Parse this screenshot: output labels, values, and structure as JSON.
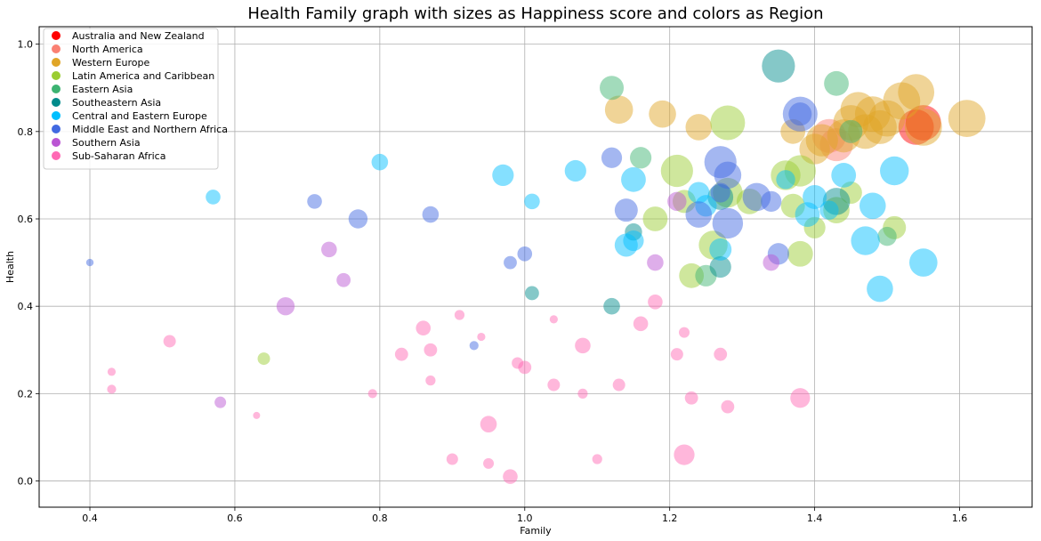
{
  "chart_data": {
    "type": "scatter",
    "title": "Health Family graph with sizes as Happiness score and colors as Region",
    "xlabel": "Family",
    "ylabel": "Health",
    "xlim": [
      0.33,
      1.7
    ],
    "ylim": [
      -0.06,
      1.04
    ],
    "xticks": [
      0.4,
      0.6,
      0.8,
      1.0,
      1.2,
      1.4,
      1.6
    ],
    "yticks": [
      0.0,
      0.2,
      0.4,
      0.6,
      0.8,
      1.0
    ],
    "grid": true,
    "legend_placement": "top-left",
    "size_encoding": "Happiness score",
    "color_encoding": "Region",
    "series": [
      {
        "name": "Australia and New Zealand",
        "color": "#ff0000",
        "points": [
          [
            1.55,
            0.82,
            7.3
          ],
          [
            1.54,
            0.81,
            7.3
          ]
        ]
      },
      {
        "name": "North America",
        "color": "#fa8072",
        "points": [
          [
            1.42,
            0.79,
            7.1
          ],
          [
            1.43,
            0.77,
            7.0
          ]
        ]
      },
      {
        "name": "Western Europe",
        "color": "#e0a526",
        "points": [
          [
            1.61,
            0.83,
            7.5
          ],
          [
            1.55,
            0.81,
            7.5
          ],
          [
            1.52,
            0.87,
            7.5
          ],
          [
            1.54,
            0.89,
            7.4
          ],
          [
            1.5,
            0.83,
            7.4
          ],
          [
            1.48,
            0.84,
            7.3
          ],
          [
            1.46,
            0.85,
            7.3
          ],
          [
            1.45,
            0.82,
            7.3
          ],
          [
            1.47,
            0.8,
            7.2
          ],
          [
            1.49,
            0.81,
            7.1
          ],
          [
            1.44,
            0.79,
            7.0
          ],
          [
            1.41,
            0.78,
            6.9
          ],
          [
            1.4,
            0.76,
            6.7
          ],
          [
            1.24,
            0.81,
            6.2
          ],
          [
            1.19,
            0.84,
            6.3
          ],
          [
            1.13,
            0.85,
            6.4
          ],
          [
            1.37,
            0.8,
            6.0
          ]
        ]
      },
      {
        "name": "Latin America and Caribbean",
        "color": "#9acd32",
        "points": [
          [
            1.28,
            0.82,
            7.2
          ],
          [
            1.21,
            0.71,
            6.9
          ],
          [
            1.38,
            0.71,
            6.8
          ],
          [
            1.36,
            0.7,
            6.6
          ],
          [
            1.26,
            0.54,
            6.5
          ],
          [
            1.28,
            0.66,
            6.6
          ],
          [
            1.43,
            0.62,
            6.2
          ],
          [
            1.31,
            0.64,
            6.1
          ],
          [
            1.23,
            0.47,
            6.0
          ],
          [
            1.18,
            0.6,
            6.0
          ],
          [
            1.38,
            0.52,
            6.1
          ],
          [
            1.51,
            0.58,
            5.8
          ],
          [
            1.37,
            0.63,
            5.9
          ],
          [
            1.22,
            0.64,
            5.8
          ],
          [
            1.4,
            0.58,
            5.6
          ],
          [
            1.45,
            0.66,
            5.7
          ],
          [
            0.64,
            0.28,
            4.5
          ]
        ]
      },
      {
        "name": "Eastern Asia",
        "color": "#3cb371",
        "points": [
          [
            1.43,
            0.91,
            6.0
          ],
          [
            1.12,
            0.9,
            5.9
          ],
          [
            1.16,
            0.74,
            5.6
          ],
          [
            1.45,
            0.8,
            5.8
          ],
          [
            1.25,
            0.47,
            5.6
          ],
          [
            1.5,
            0.56,
            5.3
          ]
        ]
      },
      {
        "name": "Southeastern Asia",
        "color": "#008b8b",
        "points": [
          [
            1.35,
            0.95,
            7.0
          ],
          [
            1.43,
            0.64,
            6.3
          ],
          [
            1.27,
            0.65,
            6.1
          ],
          [
            1.27,
            0.49,
            5.6
          ],
          [
            1.12,
            0.4,
            5.0
          ],
          [
            1.01,
            0.43,
            4.7
          ],
          [
            1.15,
            0.57,
            5.1
          ]
        ]
      },
      {
        "name": "Central and Eastern Europe",
        "color": "#00bfff",
        "points": [
          [
            1.47,
            0.55,
            6.5
          ],
          [
            1.51,
            0.71,
            6.5
          ],
          [
            1.55,
            0.5,
            6.4
          ],
          [
            1.49,
            0.44,
            6.2
          ],
          [
            1.48,
            0.63,
            6.2
          ],
          [
            1.44,
            0.7,
            6.0
          ],
          [
            1.39,
            0.61,
            6.0
          ],
          [
            1.4,
            0.65,
            5.9
          ],
          [
            1.15,
            0.69,
            6.0
          ],
          [
            1.27,
            0.53,
            5.7
          ],
          [
            1.25,
            0.63,
            5.6
          ],
          [
            1.14,
            0.54,
            5.8
          ],
          [
            1.15,
            0.55,
            5.5
          ],
          [
            1.24,
            0.66,
            5.6
          ],
          [
            1.07,
            0.71,
            5.6
          ],
          [
            0.97,
            0.7,
            5.6
          ],
          [
            0.8,
            0.73,
            5.0
          ],
          [
            0.57,
            0.65,
            4.8
          ],
          [
            1.01,
            0.64,
            4.9
          ],
          [
            1.36,
            0.69,
            5.3
          ],
          [
            1.42,
            0.62,
            5.3
          ]
        ]
      },
      {
        "name": "Middle East and Northern Africa",
        "color": "#4169e1",
        "points": [
          [
            1.38,
            0.84,
            7.2
          ],
          [
            1.27,
            0.73,
            6.9
          ],
          [
            1.28,
            0.59,
            6.7
          ],
          [
            1.24,
            0.61,
            6.2
          ],
          [
            1.32,
            0.65,
            6.4
          ],
          [
            1.28,
            0.7,
            6.3
          ],
          [
            1.38,
            0.84,
            5.8
          ],
          [
            1.14,
            0.62,
            5.8
          ],
          [
            1.34,
            0.64,
            5.5
          ],
          [
            1.35,
            0.52,
            5.6
          ],
          [
            1.12,
            0.74,
            5.5
          ],
          [
            1.27,
            0.66,
            5.4
          ],
          [
            0.77,
            0.6,
            5.3
          ],
          [
            0.87,
            0.61,
            5.0
          ],
          [
            0.71,
            0.64,
            4.8
          ],
          [
            1.0,
            0.52,
            4.8
          ],
          [
            0.98,
            0.5,
            4.6
          ],
          [
            0.4,
            0.5,
            3.9
          ],
          [
            0.93,
            0.31,
            4.1
          ]
        ]
      },
      {
        "name": "Southern Asia",
        "color": "#ba55d3",
        "points": [
          [
            0.67,
            0.4,
            5.2
          ],
          [
            1.21,
            0.64,
            5.3
          ],
          [
            0.73,
            0.53,
            4.9
          ],
          [
            1.18,
            0.5,
            5.0
          ],
          [
            0.75,
            0.46,
            4.7
          ],
          [
            1.34,
            0.5,
            5.0
          ],
          [
            0.58,
            0.18,
            4.4
          ]
        ]
      },
      {
        "name": "Sub-Saharan Africa",
        "color": "#ff69b4",
        "points": [
          [
            1.38,
            0.19,
            5.4
          ],
          [
            1.22,
            0.06,
            5.5
          ],
          [
            0.95,
            0.13,
            5.0
          ],
          [
            1.08,
            0.31,
            4.9
          ],
          [
            1.16,
            0.36,
            4.8
          ],
          [
            1.18,
            0.41,
            4.8
          ],
          [
            0.86,
            0.35,
            4.8
          ],
          [
            1.23,
            0.19,
            4.6
          ],
          [
            1.27,
            0.29,
            4.6
          ],
          [
            1.28,
            0.17,
            4.6
          ],
          [
            1.0,
            0.26,
            4.6
          ],
          [
            0.98,
            0.01,
            4.8
          ],
          [
            0.83,
            0.29,
            4.6
          ],
          [
            0.87,
            0.3,
            4.6
          ],
          [
            1.21,
            0.29,
            4.5
          ],
          [
            1.04,
            0.22,
            4.5
          ],
          [
            1.13,
            0.22,
            4.5
          ],
          [
            0.9,
            0.05,
            4.4
          ],
          [
            0.99,
            0.27,
            4.4
          ],
          [
            0.51,
            0.32,
            4.5
          ],
          [
            1.08,
            0.2,
            4.2
          ],
          [
            0.95,
            0.04,
            4.3
          ],
          [
            1.1,
            0.05,
            4.2
          ],
          [
            0.87,
            0.23,
            4.2
          ],
          [
            1.22,
            0.34,
            4.3
          ],
          [
            0.91,
            0.38,
            4.2
          ],
          [
            0.94,
            0.33,
            4.0
          ],
          [
            1.04,
            0.37,
            4.0
          ],
          [
            0.79,
            0.2,
            4.1
          ],
          [
            0.43,
            0.25,
            4.0
          ],
          [
            0.43,
            0.21,
            4.1
          ],
          [
            0.63,
            0.15,
            3.5
          ]
        ]
      }
    ]
  }
}
